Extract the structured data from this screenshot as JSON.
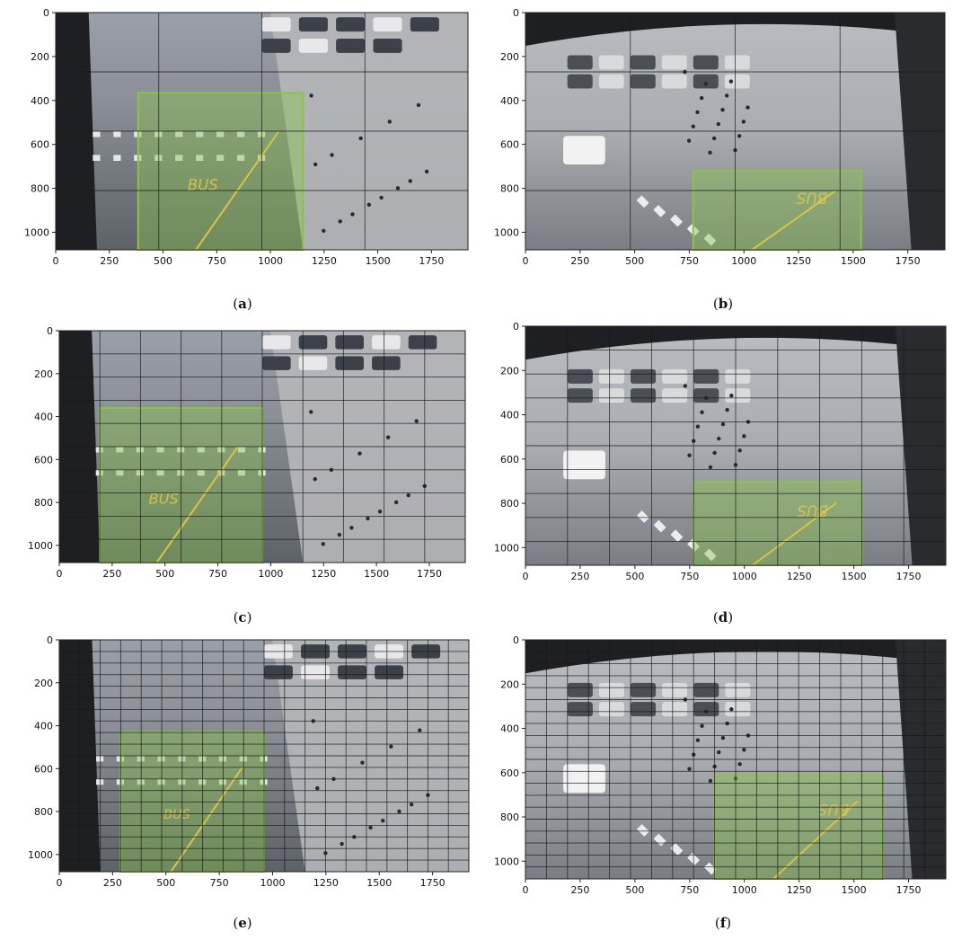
{
  "figure": {
    "panels": [
      {
        "id": "a",
        "caption_open": "(",
        "caption_letter": "a",
        "caption_close": ")"
      },
      {
        "id": "b",
        "caption_open": "(",
        "caption_letter": "b",
        "caption_close": ")"
      },
      {
        "id": "c",
        "caption_open": "(",
        "caption_letter": "c",
        "caption_close": ")"
      },
      {
        "id": "d",
        "caption_open": "(",
        "caption_letter": "d",
        "caption_close": ")"
      },
      {
        "id": "e",
        "caption_open": "(",
        "caption_letter": "e",
        "caption_close": ")"
      },
      {
        "id": "f",
        "caption_open": "(",
        "caption_letter": "f",
        "caption_close": ")"
      }
    ]
  },
  "chart_data": [
    {
      "panel": "a",
      "type": "image",
      "scene": "bus stop street camera",
      "xlim": [
        0,
        1920
      ],
      "ylim": [
        1080,
        0
      ],
      "x_ticks": [
        0,
        250,
        500,
        750,
        1000,
        1250,
        1500,
        1750
      ],
      "y_ticks": [
        0,
        200,
        400,
        600,
        800,
        1000
      ],
      "grid_cells": [
        4,
        4
      ],
      "roi": {
        "x_range": [
          384,
          1152
        ],
        "y_range": [
          365,
          1080
        ]
      },
      "roi_color": "#8bc34a",
      "marking": "BUS"
    },
    {
      "panel": "b",
      "type": "image",
      "scene": "car park plaza camera",
      "xlim": [
        0,
        1920
      ],
      "ylim": [
        1080,
        0
      ],
      "x_ticks": [
        0,
        250,
        500,
        750,
        1000,
        1250,
        1500,
        1750
      ],
      "y_ticks": [
        0,
        200,
        400,
        600,
        800,
        1000
      ],
      "grid_cells": [
        4,
        4
      ],
      "roi": {
        "x_range": [
          768,
          1536
        ],
        "y_range": [
          720,
          1080
        ]
      },
      "roi_color": "#8bc34a",
      "marking": "BUS"
    },
    {
      "panel": "c",
      "type": "image",
      "scene": "bus stop street camera",
      "xlim": [
        0,
        1920
      ],
      "ylim": [
        1080,
        0
      ],
      "x_ticks": [
        0,
        250,
        500,
        750,
        1000,
        1250,
        1500,
        1750
      ],
      "y_ticks": [
        0,
        200,
        400,
        600,
        800,
        1000
      ],
      "grid_cells": [
        10,
        10
      ],
      "roi": {
        "x_range": [
          192,
          960
        ],
        "y_range": [
          360,
          1080
        ]
      },
      "roi_color": "#8bc34a",
      "marking": "BUS"
    },
    {
      "panel": "d",
      "type": "image",
      "scene": "car park plaza camera",
      "xlim": [
        0,
        1920
      ],
      "ylim": [
        1080,
        0
      ],
      "x_ticks": [
        0,
        250,
        500,
        750,
        1000,
        1250,
        1500,
        1750
      ],
      "y_ticks": [
        0,
        200,
        400,
        600,
        800,
        1000
      ],
      "grid_cells": [
        10,
        10
      ],
      "roi": {
        "x_range": [
          768,
          1536
        ],
        "y_range": [
          704,
          1080
        ]
      },
      "roi_color": "#8bc34a",
      "marking": "BUS"
    },
    {
      "panel": "e",
      "type": "image",
      "scene": "bus stop street camera",
      "xlim": [
        0,
        1920
      ],
      "ylim": [
        1080,
        0
      ],
      "x_ticks": [
        0,
        250,
        500,
        750,
        1000,
        1250,
        1500,
        1750
      ],
      "y_ticks": [
        0,
        200,
        400,
        600,
        800,
        1000
      ],
      "grid_cells": [
        20,
        20
      ],
      "roi": {
        "x_range": [
          288,
          960
        ],
        "y_range": [
          430,
          1080
        ]
      },
      "roi_color": "#8bc34a",
      "marking": "BUS"
    },
    {
      "panel": "f",
      "type": "image",
      "scene": "car park plaza camera",
      "xlim": [
        0,
        1920
      ],
      "ylim": [
        1080,
        0
      ],
      "x_ticks": [
        0,
        250,
        500,
        750,
        1000,
        1250,
        1500,
        1750
      ],
      "y_ticks": [
        0,
        200,
        400,
        600,
        800,
        1000
      ],
      "grid_cells": [
        20,
        20
      ],
      "roi": {
        "x_range": [
          864,
          1632
        ],
        "y_range": [
          612,
          1080
        ]
      },
      "roi_color": "#8bc34a",
      "marking": "BUS"
    }
  ]
}
